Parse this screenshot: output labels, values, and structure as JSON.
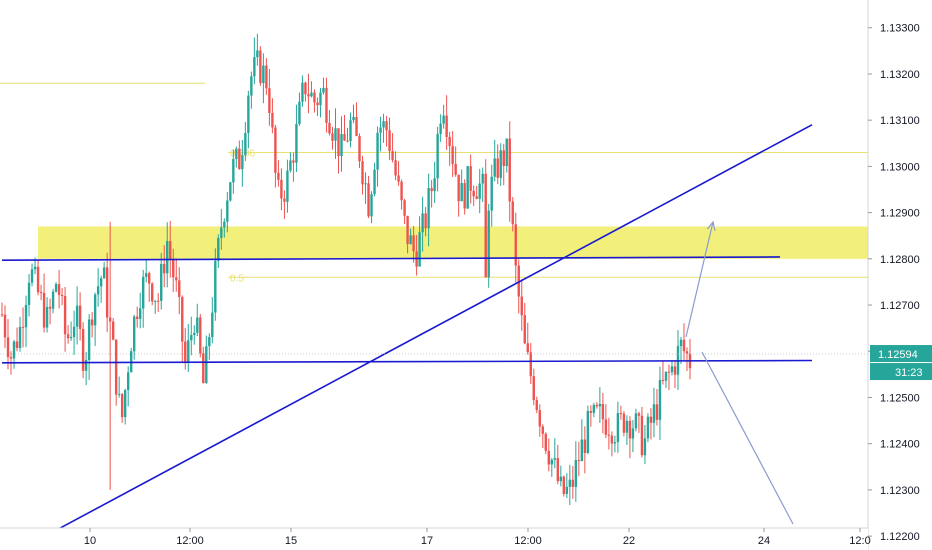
{
  "chart_data": {
    "type": "candlestick",
    "instrument_note": "",
    "ylim": [
      1.1217,
      1.1336
    ],
    "y_ticks": [
      "1.12200",
      "1.12300",
      "1.12400",
      "1.12500",
      "1.12600",
      "1.12700",
      "1.12800",
      "1.12900",
      "1.13000",
      "1.13100",
      "1.13200",
      "1.13300"
    ],
    "x_ticks": [
      "10",
      "12:00",
      "15",
      "17",
      "12:00",
      "22",
      "24",
      "12:0"
    ],
    "current_price": "1.12594",
    "countdown": "31:23",
    "colors": {
      "up": "#26a69a",
      "down": "#ef5350",
      "zone": "#f0ec64",
      "fib": "#e8e070",
      "trend": "#1a1ad0",
      "projection": "#8a9bd0",
      "badge": "#26a69a",
      "countdown_badge": "#26a69a"
    },
    "zone": {
      "from": 1.128,
      "to": 1.1287
    },
    "fib_levels": [
      {
        "label": "0.786",
        "price": 1.1303
      },
      {
        "label": "0.5",
        "price": 1.1276
      },
      {
        "label": "",
        "price": 1.1318
      }
    ],
    "price_line": 1.12594,
    "candle_path": [
      1.1268,
      1.1259,
      1.1265,
      1.1278,
      1.1272,
      1.1266,
      1.1276,
      1.1262,
      1.1268,
      1.1258,
      1.1272,
      1.1277,
      1.1262,
      1.1244,
      1.1262,
      1.1273,
      1.1276,
      1.1271,
      1.1284,
      1.1273,
      1.1257,
      1.1268,
      1.1252,
      1.1272,
      1.1289,
      1.1299,
      1.1302,
      1.1319,
      1.1322,
      1.1318,
      1.1293,
      1.1296,
      1.1306,
      1.1318,
      1.1314,
      1.1316,
      1.1309,
      1.1303,
      1.1309,
      1.1303,
      1.1292,
      1.1309,
      1.1308,
      1.1297,
      1.1286,
      1.1281,
      1.1287,
      1.1297,
      1.1316,
      1.1304,
      1.1293,
      1.1297,
      1.1296,
      1.1293,
      1.13,
      1.1303,
      1.1277,
      1.126,
      1.1252,
      1.1243,
      1.1236,
      1.1229,
      1.123,
      1.1238,
      1.1244,
      1.1246,
      1.1245,
      1.1243,
      1.1246,
      1.1244,
      1.124,
      1.1246,
      1.1252,
      1.1256,
      1.1261,
      1.1258
    ],
    "trend_lines": [
      {
        "name": "",
        "from": [
          "8",
          1.12797
        ],
        "to": [
          "25",
          1.12804
        ]
      },
      {
        "name": "",
        "from": [
          "8",
          1.12575
        ],
        "to": [
          "26",
          1.1258
        ]
      },
      {
        "name": "",
        "from": [
          "8",
          1.1215
        ],
        "to": [
          "26",
          1.1309
        ]
      }
    ]
  }
}
